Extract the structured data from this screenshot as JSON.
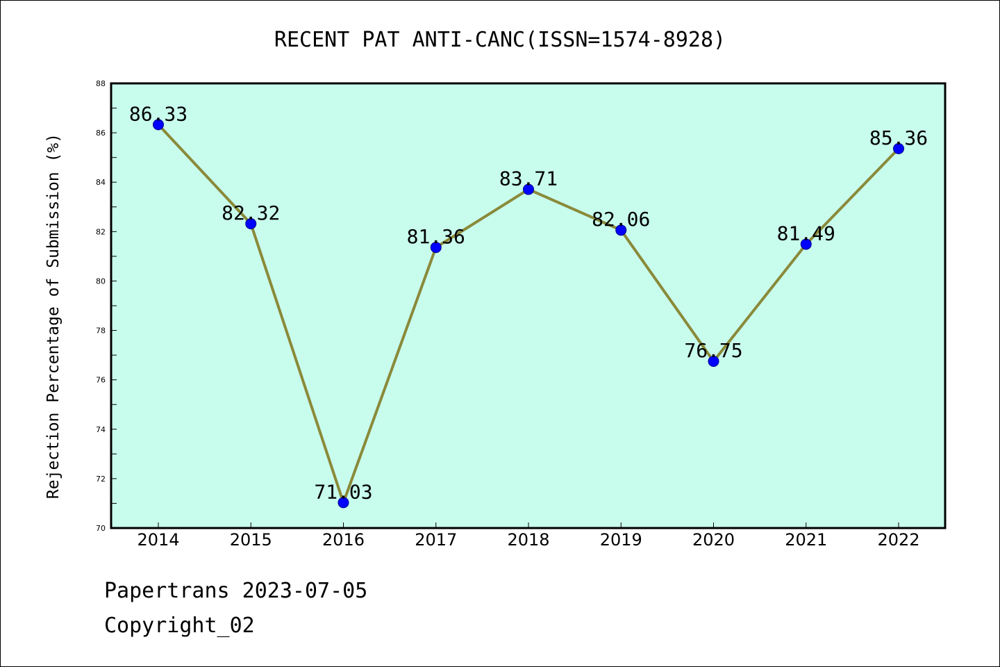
{
  "chart_data": {
    "type": "line",
    "title": "RECENT PAT ANTI-CANC(ISSN=1574-8928)",
    "xlabel": "",
    "ylabel": "Rejection Percentage of Submission (%)",
    "categories": [
      "2014",
      "2015",
      "2016",
      "2017",
      "2018",
      "2019",
      "2020",
      "2021",
      "2022"
    ],
    "series": [
      {
        "values": [
          86.33,
          82.32,
          71.03,
          81.36,
          83.71,
          82.06,
          76.75,
          81.49,
          85.36
        ],
        "data_labels": [
          "86.33",
          "82.32",
          "71.03",
          "81.36",
          "83.71",
          "82.06",
          "76.75",
          "81.49",
          "85.36"
        ]
      }
    ],
    "ylim": [
      70,
      88
    ],
    "yticks": [
      70,
      72,
      74,
      76,
      78,
      80,
      82,
      84,
      86,
      88
    ],
    "grid": false,
    "legend": "none",
    "colors": {
      "plot_background": "#c8fced",
      "line": "#8a8a3a",
      "marker": "#0000ff"
    }
  },
  "footer": {
    "source": "Papertrans 2023-07-05",
    "copyright": "Copyright_02"
  }
}
